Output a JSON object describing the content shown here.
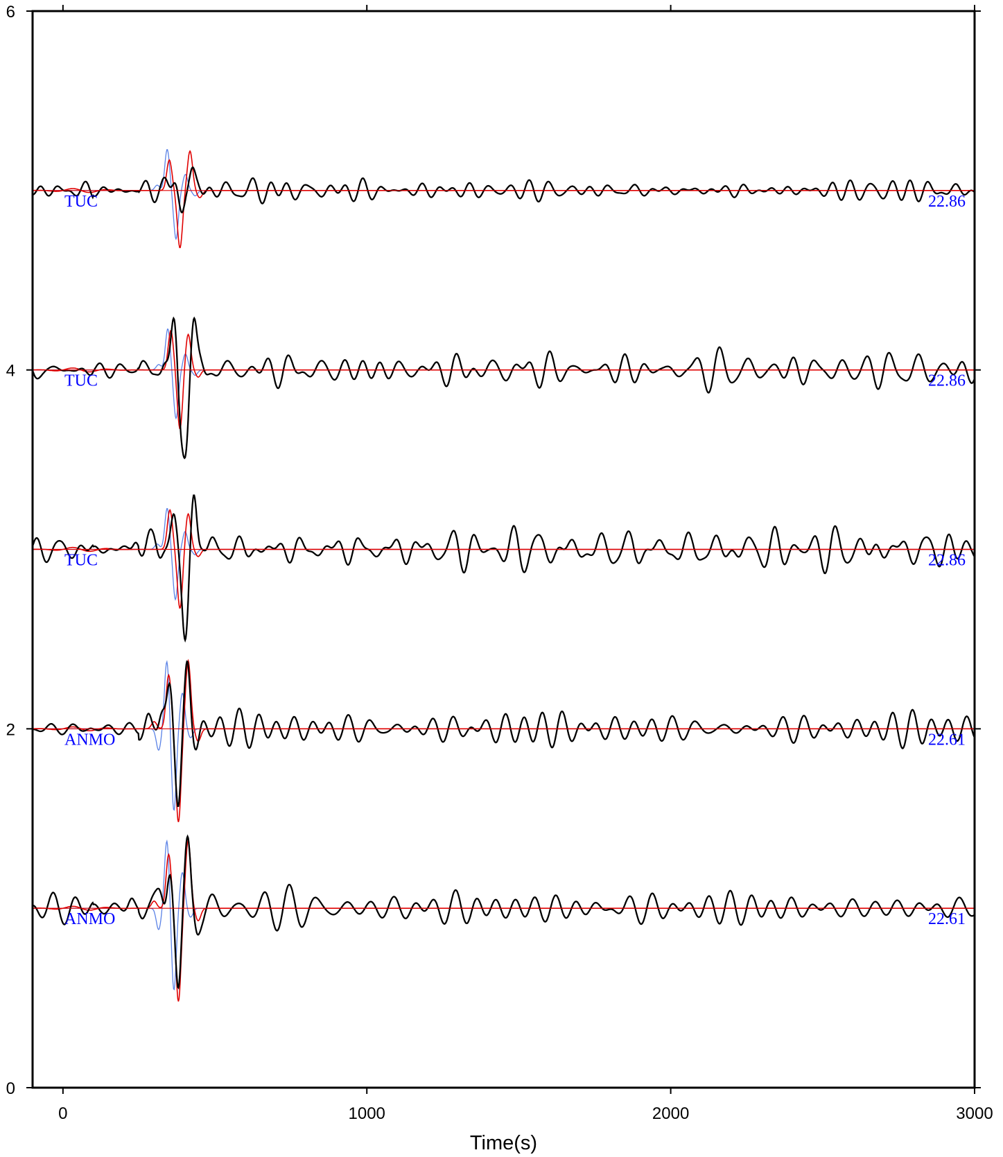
{
  "chart_data": {
    "type": "line",
    "xlabel": "Time(s)",
    "ylabel": "",
    "xlim": [
      -100,
      3000
    ],
    "ylim": [
      0,
      6
    ],
    "xticks": [
      0,
      1000,
      2000,
      3000
    ],
    "yticks": [
      0,
      2,
      4,
      6
    ],
    "grid": false,
    "series_colors": {
      "observed": "#000000",
      "synthetic_a": "#e00000",
      "synthetic_b": "#5a82e6"
    },
    "traces": [
      {
        "station": "TUC",
        "value": "22.86",
        "offset": 5.0,
        "observed_amp": 0.07,
        "seed": 11,
        "pulse": [
          {
            "t": 312,
            "amp": 0.02
          },
          {
            "t": 335,
            "amp": 0.01
          },
          {
            "t": 368,
            "amp": 0.06
          },
          {
            "t": 390,
            "amp": -0.11
          },
          {
            "t": 405,
            "amp": 0.02
          },
          {
            "t": 425,
            "amp": 0.08
          },
          {
            "t": 448,
            "amp": 0.03
          }
        ],
        "synthetic_a": [
          {
            "t": 350,
            "amp": 0.17
          },
          {
            "t": 385,
            "amp": -0.32
          },
          {
            "t": 418,
            "amp": 0.22
          },
          {
            "t": 450,
            "amp": -0.04
          }
        ],
        "synthetic_b": [
          {
            "t": 310,
            "amp": 0.03
          },
          {
            "t": 343,
            "amp": 0.23
          },
          {
            "t": 372,
            "amp": -0.27
          },
          {
            "t": 403,
            "amp": 0.09
          },
          {
            "t": 435,
            "amp": -0.03
          }
        ]
      },
      {
        "station": "TUC",
        "value": "22.86",
        "offset": 4.0,
        "observed_amp": 0.1,
        "seed": 23,
        "pulse": [
          {
            "t": 260,
            "amp": 0.04
          },
          {
            "t": 290,
            "amp": -0.03
          },
          {
            "t": 335,
            "amp": 0.06
          },
          {
            "t": 365,
            "amp": 0.22
          },
          {
            "t": 388,
            "amp": -0.26
          },
          {
            "t": 405,
            "amp": -0.31
          },
          {
            "t": 430,
            "amp": 0.2
          },
          {
            "t": 455,
            "amp": 0.05
          }
        ],
        "synthetic_a": [
          {
            "t": 355,
            "amp": 0.22
          },
          {
            "t": 385,
            "amp": -0.33
          },
          {
            "t": 412,
            "amp": 0.2
          },
          {
            "t": 445,
            "amp": -0.04
          }
        ],
        "synthetic_b": [
          {
            "t": 315,
            "amp": 0.03
          },
          {
            "t": 345,
            "amp": 0.23
          },
          {
            "t": 372,
            "amp": -0.27
          },
          {
            "t": 403,
            "amp": 0.09
          },
          {
            "t": 435,
            "amp": -0.03
          }
        ]
      },
      {
        "station": "TUC",
        "value": "22.86",
        "offset": 3.0,
        "observed_amp": 0.13,
        "seed": 37,
        "pulse": [
          {
            "t": 240,
            "amp": 0.05
          },
          {
            "t": 280,
            "amp": 0.04
          },
          {
            "t": 330,
            "amp": 0.05
          },
          {
            "t": 365,
            "amp": 0.17
          },
          {
            "t": 395,
            "amp": -0.2
          },
          {
            "t": 405,
            "amp": -0.36
          },
          {
            "t": 430,
            "amp": 0.28
          },
          {
            "t": 460,
            "amp": 0.06
          }
        ],
        "synthetic_a": [
          {
            "t": 352,
            "amp": 0.22
          },
          {
            "t": 385,
            "amp": -0.33
          },
          {
            "t": 412,
            "amp": 0.2
          },
          {
            "t": 445,
            "amp": -0.04
          }
        ],
        "synthetic_b": [
          {
            "t": 310,
            "amp": 0.03
          },
          {
            "t": 343,
            "amp": 0.23
          },
          {
            "t": 370,
            "amp": -0.28
          },
          {
            "t": 402,
            "amp": 0.1
          },
          {
            "t": 435,
            "amp": -0.03
          }
        ]
      },
      {
        "station": "ANMO",
        "value": "22.61",
        "offset": 2.0,
        "observed_amp": 0.12,
        "seed": 53,
        "pulse": [
          {
            "t": 280,
            "amp": 0.05
          },
          {
            "t": 325,
            "amp": 0.08
          },
          {
            "t": 352,
            "amp": 0.26
          },
          {
            "t": 380,
            "amp": -0.42
          },
          {
            "t": 410,
            "amp": 0.34
          },
          {
            "t": 440,
            "amp": -0.07
          }
        ],
        "synthetic_a": [
          {
            "t": 300,
            "amp": 0.04
          },
          {
            "t": 348,
            "amp": 0.3
          },
          {
            "t": 380,
            "amp": -0.52
          },
          {
            "t": 412,
            "amp": 0.38
          },
          {
            "t": 445,
            "amp": -0.07
          }
        ],
        "synthetic_b": [
          {
            "t": 315,
            "amp": -0.12
          },
          {
            "t": 342,
            "amp": 0.38
          },
          {
            "t": 365,
            "amp": -0.46
          },
          {
            "t": 393,
            "amp": 0.2
          },
          {
            "t": 420,
            "amp": -0.05
          }
        ]
      },
      {
        "station": "ANMO",
        "value": "22.61",
        "offset": 1.0,
        "observed_amp": 0.12,
        "seed": 71,
        "pulse": [
          {
            "t": 225,
            "amp": 0.04
          },
          {
            "t": 275,
            "amp": 0.03
          },
          {
            "t": 320,
            "amp": 0.06
          },
          {
            "t": 352,
            "amp": 0.25
          },
          {
            "t": 380,
            "amp": -0.44
          },
          {
            "t": 410,
            "amp": 0.32
          },
          {
            "t": 440,
            "amp": -0.07
          }
        ],
        "synthetic_a": [
          {
            "t": 300,
            "amp": 0.04
          },
          {
            "t": 348,
            "amp": 0.3
          },
          {
            "t": 380,
            "amp": -0.52
          },
          {
            "t": 412,
            "amp": 0.38
          },
          {
            "t": 445,
            "amp": -0.07
          }
        ],
        "synthetic_b": [
          {
            "t": 315,
            "amp": -0.12
          },
          {
            "t": 342,
            "amp": 0.38
          },
          {
            "t": 365,
            "amp": -0.46
          },
          {
            "t": 393,
            "amp": 0.2
          },
          {
            "t": 420,
            "amp": -0.05
          }
        ]
      }
    ]
  }
}
